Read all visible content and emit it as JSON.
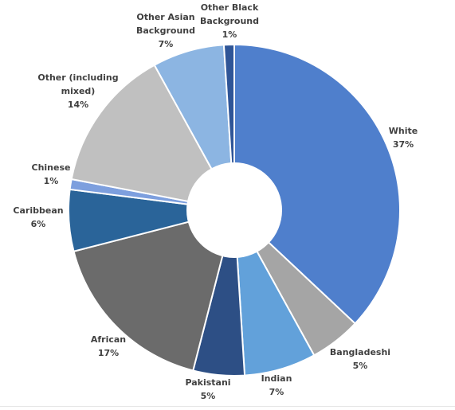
{
  "chart_data": {
    "type": "pie",
    "variant": "donut",
    "slices": [
      {
        "label": "White",
        "value": 37,
        "value_text": "37%",
        "color": "#4f7fcc"
      },
      {
        "label": "Bangladeshi",
        "value": 5,
        "value_text": "5%",
        "color": "#a5a5a5"
      },
      {
        "label": "Indian",
        "value": 7,
        "value_text": "7%",
        "color": "#62a1da"
      },
      {
        "label": "Pakistani",
        "value": 5,
        "value_text": "5%",
        "color": "#2d4f85"
      },
      {
        "label": "African",
        "value": 17,
        "value_text": "17%",
        "color": "#6b6b6b"
      },
      {
        "label": "Caribbean",
        "value": 6,
        "value_text": "6%",
        "color": "#2a6499"
      },
      {
        "label": "Chinese",
        "value": 1,
        "value_text": "1%",
        "color": "#7d9fde"
      },
      {
        "label": "Other (including mixed)",
        "value": 14,
        "value_text": "14%",
        "color": "#c0c0c0"
      },
      {
        "label": "Other Asian Background",
        "value": 7,
        "value_text": "7%",
        "color": "#8cb5e2"
      },
      {
        "label": "Other Black Background",
        "value": 1,
        "value_text": "1%",
        "color": "#2f5597"
      }
    ],
    "legend": "none",
    "data_labels": "outside"
  }
}
